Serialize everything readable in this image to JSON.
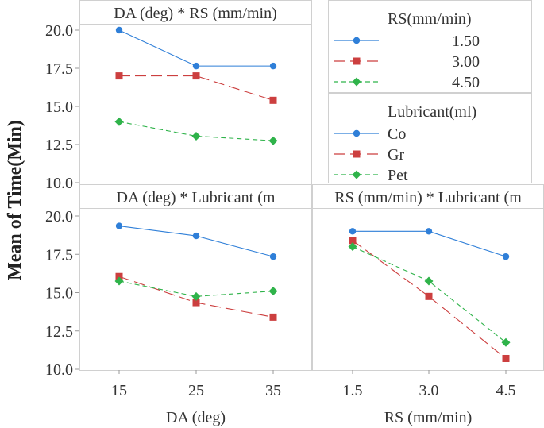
{
  "chart_data": {
    "type": "line",
    "ylabel": "Mean of Time(Min)",
    "ylim": [
      10,
      20.5
    ],
    "yticks": [
      "10.0",
      "12.5",
      "15.0",
      "17.5",
      "20.0"
    ],
    "ytick_values": [
      10,
      12.5,
      15,
      17.5,
      20
    ],
    "colors": {
      "s1": "#2f7fd8",
      "s2": "#cc3f3f",
      "s3": "#2fb34a"
    },
    "panels": [
      {
        "title": "DA (deg) * RS (mm/min)",
        "x": [
          "15",
          "25",
          "35"
        ],
        "series": [
          {
            "name": "1.50",
            "values": [
              20.0,
              17.65,
              17.65
            ]
          },
          {
            "name": "3.00",
            "values": [
              17.0,
              17.0,
              15.4
            ]
          },
          {
            "name": "4.50",
            "values": [
              14.0,
              13.05,
              12.75
            ]
          }
        ]
      },
      {
        "title": "DA (deg) * Lubricant (m",
        "x": [
          "15",
          "25",
          "35"
        ],
        "xlabel": "DA (deg)",
        "series": [
          {
            "name": "Co",
            "values": [
              19.35,
              18.7,
              17.35
            ]
          },
          {
            "name": "Gr",
            "values": [
              16.05,
              14.35,
              13.4
            ]
          },
          {
            "name": "Pet",
            "values": [
              15.75,
              14.75,
              15.1
            ]
          }
        ]
      },
      {
        "title": "RS (mm/min) * Lubricant (m",
        "x": [
          "1.5",
          "3.0",
          "4.5"
        ],
        "xlabel": "RS (mm/min)",
        "series": [
          {
            "name": "Co",
            "values": [
              19.0,
              19.0,
              17.35
            ]
          },
          {
            "name": "Gr",
            "values": [
              18.4,
              14.75,
              10.7
            ]
          },
          {
            "name": "Pet",
            "values": [
              18.0,
              15.75,
              11.75
            ]
          }
        ]
      }
    ],
    "legends": [
      {
        "title": "RS(mm/min)",
        "entries": [
          "1.50",
          "3.00",
          "4.50"
        ]
      },
      {
        "title": "Lubricant(ml)",
        "entries": [
          "Co",
          "Gr",
          "Pet"
        ]
      }
    ]
  }
}
